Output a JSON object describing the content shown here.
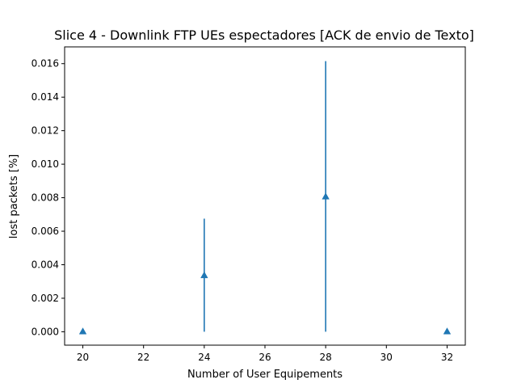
{
  "chart_data": {
    "type": "scatter",
    "title": "Slice 4 - Downlink FTP UEs espectadores [ACK de envio de Texto]",
    "xlabel": "Number of User Equipements",
    "ylabel": "lost packets [%]",
    "xlim": [
      19.4,
      32.6
    ],
    "ylim": [
      -0.0008,
      0.017
    ],
    "x_ticks": [
      20,
      22,
      24,
      26,
      28,
      30,
      32
    ],
    "x_tick_labels": [
      "20",
      "22",
      "24",
      "26",
      "28",
      "30",
      "32"
    ],
    "y_ticks": [
      0.0,
      0.002,
      0.004,
      0.006,
      0.008,
      0.01,
      0.012,
      0.014,
      0.016
    ],
    "y_tick_labels": [
      "0.000",
      "0.002",
      "0.004",
      "0.006",
      "0.008",
      "0.010",
      "0.012",
      "0.014",
      "0.016"
    ],
    "grid": false,
    "marker": "triangle-up",
    "color": "#1f77b4",
    "series": [
      {
        "x": [
          20,
          24,
          28,
          32
        ],
        "y": [
          0.0,
          0.00335,
          0.00805,
          0.0
        ],
        "err_low": [
          0.0,
          0.00335,
          0.00805,
          0.0
        ],
        "err_high": [
          0.0,
          0.0034,
          0.0081,
          0.0
        ]
      }
    ]
  }
}
